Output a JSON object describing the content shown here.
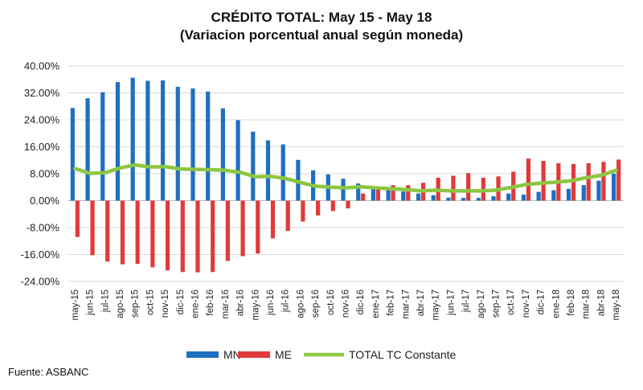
{
  "chart_data": {
    "type": "bar",
    "title": "CRÉDITO TOTAL: May 15 - May 18",
    "subtitle": "(Variacion porcentual anual según moneda)",
    "source": "Fuente: ASBANC",
    "ylim": [
      -24,
      40
    ],
    "yticks": [
      40,
      32,
      24,
      16,
      8,
      0,
      -8,
      -16,
      -24
    ],
    "ytick_labels": [
      "40.00%",
      "32.00%",
      "24.00%",
      "16.00%",
      "8.00%",
      "0.00%",
      "-8.00%",
      "-16.00%",
      "-24.00%"
    ],
    "grid": true,
    "legend_position": "bottom",
    "categories": [
      "may-15",
      "jun-15",
      "jul-15",
      "ago-15",
      "sep-15",
      "oct-15",
      "nov-15",
      "dic-15",
      "ene-16",
      "feb-16",
      "mar-16",
      "abr-16",
      "may-16",
      "jun-16",
      "jul-16",
      "ago-16",
      "sep-16",
      "oct-16",
      "nov-16",
      "dic-16",
      "ene-17",
      "feb-17",
      "mar-17",
      "abr-17",
      "may-17",
      "jun-17",
      "jul-17",
      "ago-17",
      "sep-17",
      "oct-17",
      "nov-17",
      "dic-17",
      "ene-18",
      "feb-18",
      "mar-18",
      "abr-18",
      "may-18"
    ],
    "series": [
      {
        "name": "MN",
        "type": "bar",
        "color": "#1f6fc1",
        "values": [
          27.5,
          30.4,
          32.2,
          35.2,
          36.5,
          35.6,
          35.7,
          33.8,
          33.3,
          32.4,
          27.4,
          23.9,
          20.5,
          17.9,
          16.7,
          12.1,
          9.0,
          7.8,
          6.5,
          5.1,
          3.6,
          3.2,
          2.7,
          2.1,
          1.6,
          0.9,
          0.8,
          0.8,
          1.3,
          2.1,
          1.8,
          2.6,
          3.1,
          3.5,
          4.6,
          5.9,
          8.0
        ]
      },
      {
        "name": "ME",
        "type": "bar",
        "color": "#e03a3a",
        "values": [
          -10.8,
          -16.2,
          -18.1,
          -18.9,
          -18.8,
          -19.8,
          -20.7,
          -21.2,
          -21.3,
          -21.2,
          -17.9,
          -16.5,
          -15.7,
          -11.2,
          -9.0,
          -6.2,
          -4.4,
          -3.1,
          -2.3,
          2.1,
          3.6,
          4.6,
          4.6,
          5.3,
          6.8,
          7.4,
          8.2,
          6.8,
          7.2,
          8.6,
          12.5,
          11.8,
          11.1,
          10.9,
          11.1,
          11.5,
          12.2
        ]
      },
      {
        "name": "TOTAL TC Constante",
        "type": "line",
        "color": "#8dc642",
        "values": [
          9.5,
          8.1,
          8.3,
          9.7,
          10.6,
          10.0,
          10.1,
          9.4,
          9.3,
          9.2,
          9.0,
          8.4,
          7.1,
          7.2,
          6.6,
          5.4,
          4.3,
          4.0,
          3.8,
          4.1,
          3.8,
          3.5,
          3.3,
          2.9,
          3.1,
          2.9,
          2.9,
          2.9,
          3.1,
          3.9,
          4.8,
          5.2,
          5.5,
          5.9,
          6.8,
          7.5,
          9.0
        ]
      }
    ]
  }
}
